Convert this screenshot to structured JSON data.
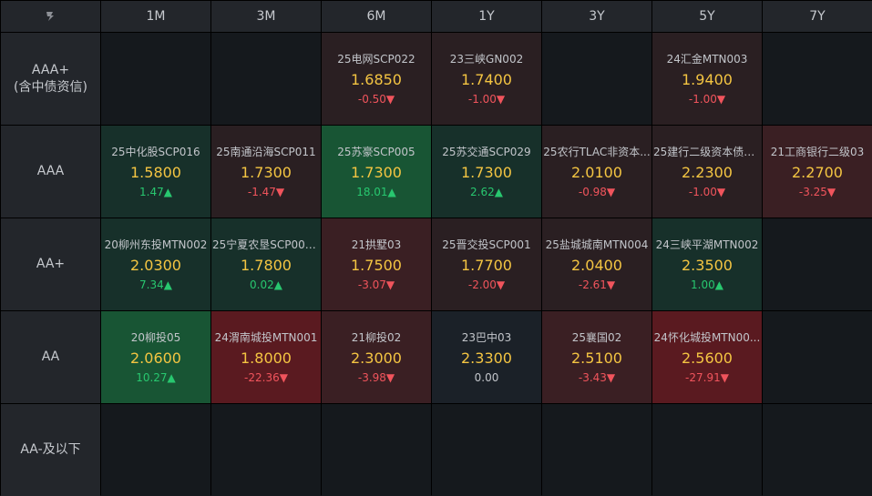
{
  "columns": [
    "1M",
    "3M",
    "6M",
    "1Y",
    "3Y",
    "5Y",
    "7Y"
  ],
  "rows": [
    {
      "label_lines": [
        "AAA+",
        "(含中债资信)"
      ],
      "cells": [
        null,
        null,
        {
          "name": "25电网SCP022",
          "yield": "1.6850",
          "change": "-0.50▼",
          "dir": "down",
          "tone": "red1"
        },
        {
          "name": "23三峡GN002",
          "yield": "1.7400",
          "change": "-1.00▼",
          "dir": "down",
          "tone": "red1"
        },
        null,
        {
          "name": "24汇金MTN003",
          "yield": "1.9400",
          "change": "-1.00▼",
          "dir": "down",
          "tone": "red1"
        },
        null
      ]
    },
    {
      "label_lines": [
        "AAA"
      ],
      "cells": [
        {
          "name": "25中化股SCP016",
          "yield": "1.5800",
          "change": "1.47▲",
          "dir": "up",
          "tone": "grn1"
        },
        {
          "name": "25南通沿海SCP011",
          "yield": "1.7300",
          "change": "-1.47▼",
          "dir": "down",
          "tone": "red1"
        },
        {
          "name": "25苏豪SCP005",
          "yield": "1.7300",
          "change": "18.01▲",
          "dir": "up",
          "tone": "grn2"
        },
        {
          "name": "25苏交通SCP029",
          "yield": "1.7300",
          "change": "2.62▲",
          "dir": "up",
          "tone": "grn1"
        },
        {
          "name": "25农行TLAC非资本...",
          "yield": "2.0100",
          "change": "-0.98▼",
          "dir": "down",
          "tone": "red1"
        },
        {
          "name": "25建行二级资本债0...",
          "yield": "2.2300",
          "change": "-1.00▼",
          "dir": "down",
          "tone": "red1"
        },
        {
          "name": "21工商银行二级03",
          "yield": "2.2700",
          "change": "-3.25▼",
          "dir": "down",
          "tone": "red2"
        }
      ]
    },
    {
      "label_lines": [
        "AA+"
      ],
      "cells": [
        {
          "name": "20柳州东投MTN002",
          "yield": "2.0300",
          "change": "7.34▲",
          "dir": "up",
          "tone": "grn1"
        },
        {
          "name": "25宁夏农垦SCP003...",
          "yield": "1.7800",
          "change": "0.02▲",
          "dir": "up",
          "tone": "grn1"
        },
        {
          "name": "21拱墅03",
          "yield": "1.7500",
          "change": "-3.07▼",
          "dir": "down",
          "tone": "red2"
        },
        {
          "name": "25晋交投SCP001",
          "yield": "1.7700",
          "change": "-2.00▼",
          "dir": "down",
          "tone": "red1"
        },
        {
          "name": "25盐城城南MTN004",
          "yield": "2.0400",
          "change": "-2.61▼",
          "dir": "down",
          "tone": "red1"
        },
        {
          "name": "24三峡平湖MTN002",
          "yield": "2.3500",
          "change": "1.00▲",
          "dir": "up",
          "tone": "grn1"
        },
        null
      ]
    },
    {
      "label_lines": [
        "AA"
      ],
      "cells": [
        {
          "name": "20柳投05",
          "yield": "2.0600",
          "change": "10.27▲",
          "dir": "up",
          "tone": "grn2"
        },
        {
          "name": "24渭南城投MTN001",
          "yield": "1.8000",
          "change": "-22.36▼",
          "dir": "down",
          "tone": "red3"
        },
        {
          "name": "21柳投02",
          "yield": "2.3000",
          "change": "-3.98▼",
          "dir": "down",
          "tone": "red2"
        },
        {
          "name": "23巴中03",
          "yield": "2.3300",
          "change": "0.00",
          "dir": "flat",
          "tone": "neutral"
        },
        {
          "name": "25襄国02",
          "yield": "2.5100",
          "change": "-3.43▼",
          "dir": "down",
          "tone": "red2"
        },
        {
          "name": "24怀化城投MTN00...",
          "yield": "2.5600",
          "change": "-27.91▼",
          "dir": "down",
          "tone": "red3"
        },
        null
      ]
    },
    {
      "label_lines": [
        "AA-及以下"
      ],
      "cells": [
        null,
        null,
        null,
        null,
        null,
        null,
        null
      ]
    }
  ],
  "icons": {
    "corner": "logo-icon"
  },
  "colors": {
    "yield": "#f4c542",
    "up": "#28c76f",
    "down": "#f0545c",
    "header_bg": "#23262b"
  }
}
